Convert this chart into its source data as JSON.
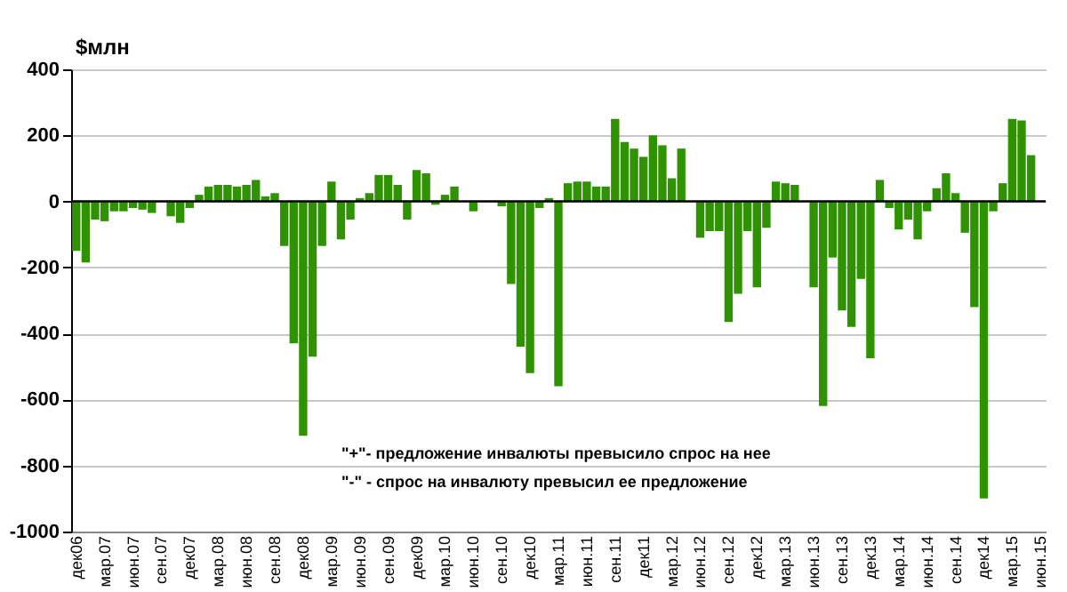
{
  "chart_data": {
    "type": "bar",
    "ylabel": "$млн",
    "categories": [
      "дек06",
      null,
      null,
      "мар.07",
      null,
      null,
      "июн.07",
      null,
      null,
      "сен.07",
      null,
      null,
      "дек07",
      null,
      null,
      "мар.08",
      null,
      null,
      "июн.08",
      null,
      null,
      "сен.08",
      null,
      null,
      "дек08",
      null,
      null,
      "мар.09",
      null,
      null,
      "июн.09",
      null,
      null,
      "сен.09",
      null,
      null,
      "дек09",
      null,
      null,
      "мар.10",
      null,
      null,
      "июн.10",
      null,
      null,
      "сен.10",
      null,
      null,
      "дек10",
      null,
      null,
      "мар.11",
      null,
      null,
      "июн.11",
      null,
      null,
      "сен.11",
      null,
      null,
      "дек11",
      null,
      null,
      "мар.12",
      null,
      null,
      "июн.12",
      null,
      null,
      "сен.12",
      null,
      null,
      "дек12",
      null,
      null,
      "мар.13",
      null,
      null,
      "июн.13",
      null,
      null,
      "сен.13",
      null,
      null,
      "дек13",
      null,
      null,
      "мар.14",
      null,
      null,
      "июн.14",
      null,
      null,
      "сен.14",
      null,
      null,
      "дек14",
      null,
      null,
      "мар.15",
      null,
      null,
      "июн.15"
    ],
    "values": [
      -150,
      -185,
      -55,
      -60,
      -30,
      -30,
      -20,
      -25,
      -35,
      null,
      -45,
      -65,
      -20,
      20,
      45,
      50,
      50,
      45,
      50,
      65,
      15,
      25,
      -135,
      -430,
      -710,
      -470,
      -135,
      60,
      -115,
      -55,
      10,
      25,
      80,
      80,
      50,
      -55,
      95,
      85,
      -10,
      20,
      45,
      0,
      -30,
      0,
      null,
      -15,
      -250,
      -440,
      -520,
      -20,
      10,
      -560,
      55,
      60,
      60,
      45,
      45,
      250,
      180,
      160,
      135,
      200,
      170,
      70,
      160,
      0,
      -110,
      -90,
      -90,
      -365,
      -280,
      -90,
      -260,
      -80,
      60,
      55,
      50,
      0,
      -260,
      -620,
      -170,
      -330,
      -380,
      -235,
      -475,
      65,
      -20,
      -85,
      -55,
      -115,
      -30,
      40,
      85,
      25,
      -95,
      -320,
      -900,
      -30,
      55,
      250,
      245,
      140,
      null
    ],
    "color": "#2f9200",
    "ylim": [
      -1000,
      400
    ],
    "yticks": [
      -1000,
      -800,
      -600,
      -400,
      -200,
      0,
      200,
      400
    ],
    "grid": "y",
    "ref_lines": [
      {
        "axis": "y",
        "value": 0,
        "color": "#000000"
      }
    ],
    "annotations": [
      "\"+\"- предложение инвалюты превысило спрос на нее",
      "\"-\" - спрос на инвалюту превысил ее предложение"
    ]
  }
}
